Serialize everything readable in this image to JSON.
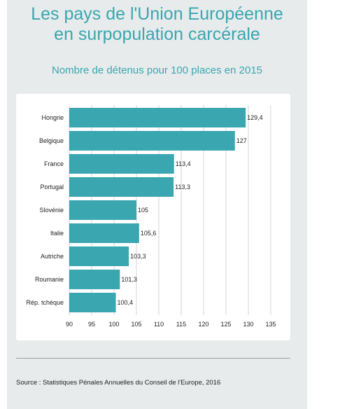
{
  "header": {
    "title_line1": "Les pays de l'Union Européenne",
    "title_line2": "en surpopulation carcérale",
    "subtitle": "Nombre de détenus pour 100 places en 2015"
  },
  "footer": {
    "source": "Source : Statistiques Pénales Annuelles du Conseil de l'Europe, 2016"
  },
  "colors": {
    "accent": "#3aa6b0",
    "bar": "#3aa6b0",
    "background": "#e8ebeb"
  },
  "chart_data": {
    "type": "bar",
    "orientation": "horizontal",
    "title": "Nombre de détenus pour 100 places en 2015",
    "xlabel": "",
    "ylabel": "",
    "categories": [
      "Hongrie",
      "Belgique",
      "France",
      "Portugal",
      "Slovénie",
      "Italie",
      "Autriche",
      "Roumanie",
      "Rép. tchèque"
    ],
    "values": [
      129.4,
      127,
      113.4,
      113.3,
      105,
      105.6,
      103.3,
      101.3,
      100.4
    ],
    "value_labels": [
      "129,4",
      "127",
      "113,4",
      "113,3",
      "105",
      "105,6",
      "103,3",
      "101,3",
      "100,4"
    ],
    "xlim": [
      90,
      135
    ],
    "xticks": [
      90,
      95,
      100,
      105,
      110,
      115,
      120,
      125,
      130,
      135
    ],
    "grid": true,
    "legend": "none"
  }
}
